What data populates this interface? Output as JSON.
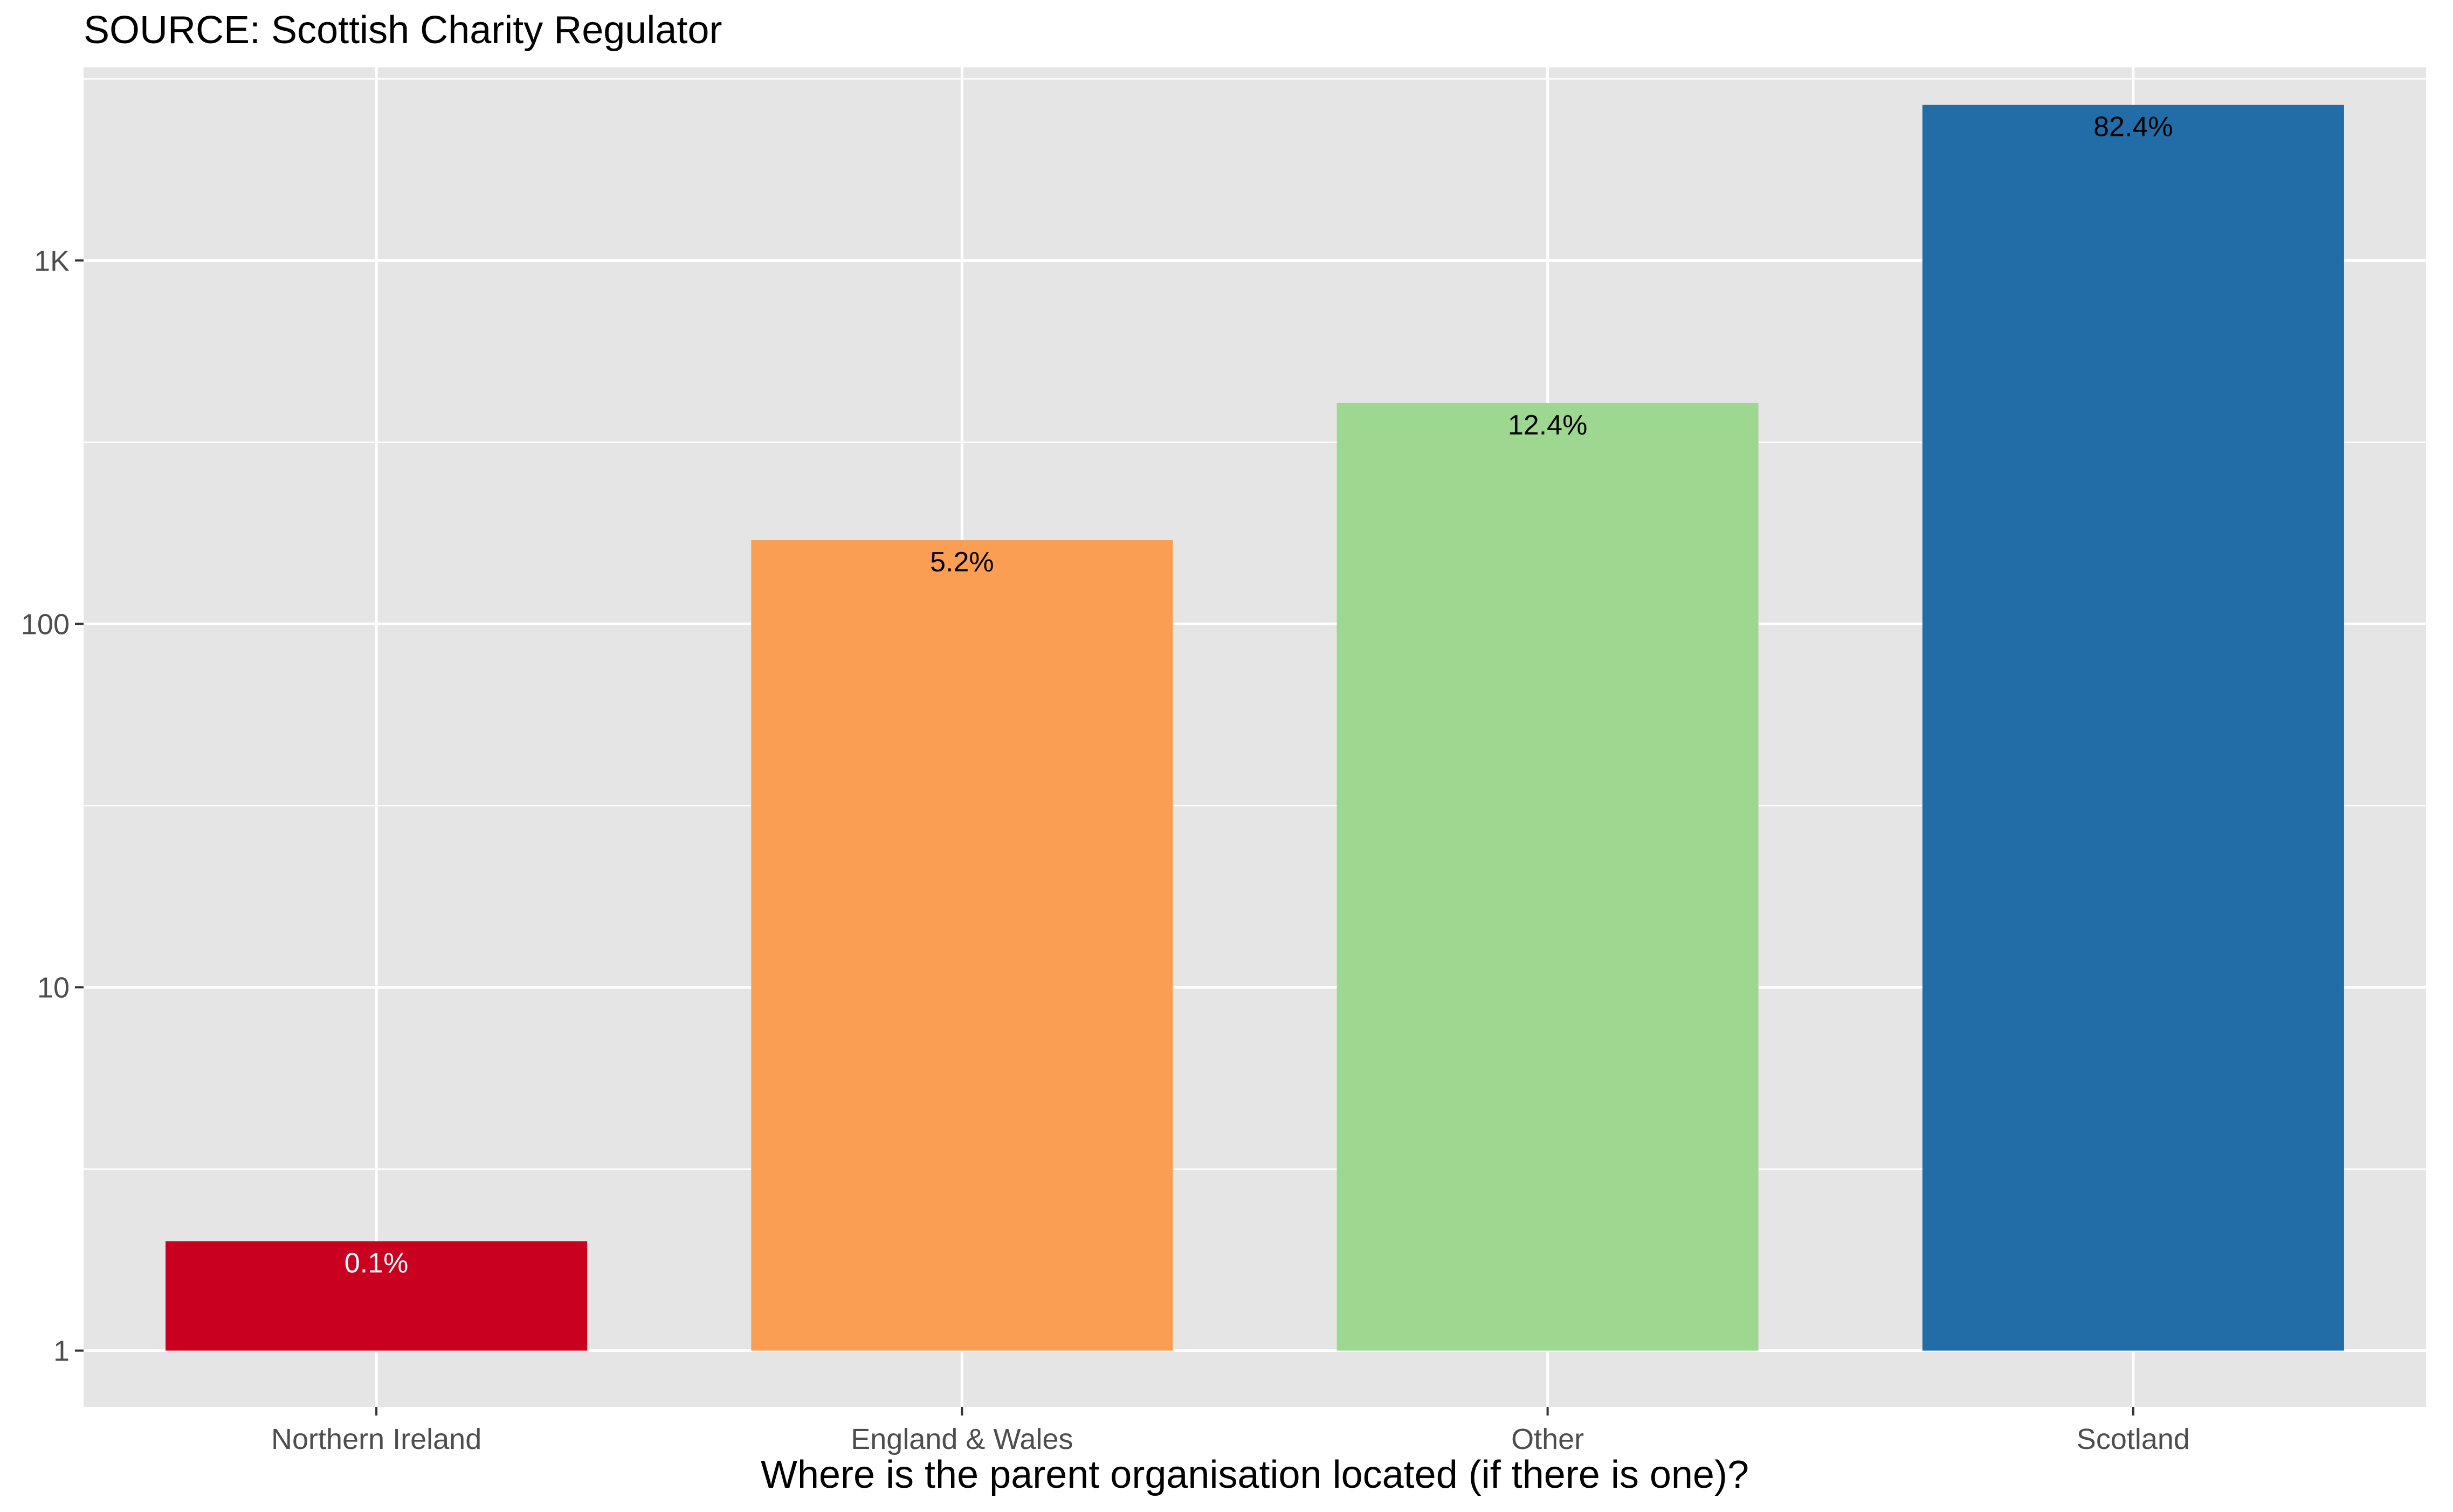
{
  "chart_data": {
    "type": "bar",
    "title": "SOURCE: Scottish Charity Regulator",
    "xlabel": "Where is the parent organisation located (if there is one)?",
    "ylabel": "",
    "y_scale": "log10",
    "ylim": [
      0.7,
      3400
    ],
    "y_ticks": [
      1,
      10,
      100,
      1000
    ],
    "y_tick_labels": [
      "1",
      "10",
      "100",
      "1K"
    ],
    "y_minor_ticks": [
      3.16,
      31.6,
      316,
      3160
    ],
    "categories": [
      "Northern Ireland",
      "England & Wales",
      "Other",
      "Scotland"
    ],
    "values": [
      2,
      170,
      405,
      2680
    ],
    "labels": [
      "0.1%",
      "5.2%",
      "12.4%",
      "82.4%"
    ],
    "colors": [
      "#ca0020",
      "#f99e52",
      "#9ed890",
      "#226da8"
    ],
    "label_colors": [
      "#ffffff",
      "#000000",
      "#000000",
      "#000000"
    ],
    "panel_background": "#e5e5e5",
    "grid_color": "#ffffff",
    "grid": true,
    "legend": "none"
  }
}
